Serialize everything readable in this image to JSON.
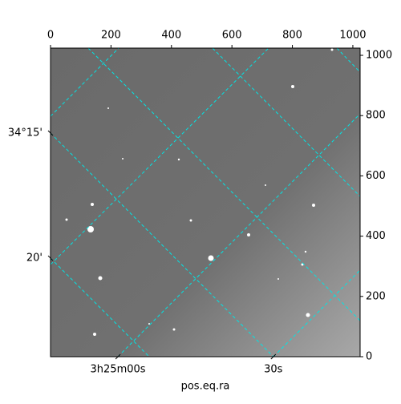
{
  "chart_data": {
    "type": "image",
    "xlabel": "pos.eq.ra",
    "xlim": [
      0,
      1024
    ],
    "ylim": [
      0,
      1024
    ],
    "xticks": [
      0,
      200,
      400,
      600,
      800,
      1000
    ],
    "yticks": [
      0,
      200,
      400,
      600,
      800,
      1000
    ],
    "ra_ticks": [
      {
        "value": 223,
        "label": "3h25m00s"
      },
      {
        "value": 737,
        "label": "30s"
      }
    ],
    "dec_ticks": [
      {
        "value": 742,
        "label": "34°15'"
      },
      {
        "value": 327,
        "label": "20'"
      }
    ],
    "grid_color": "#00e5e5"
  }
}
